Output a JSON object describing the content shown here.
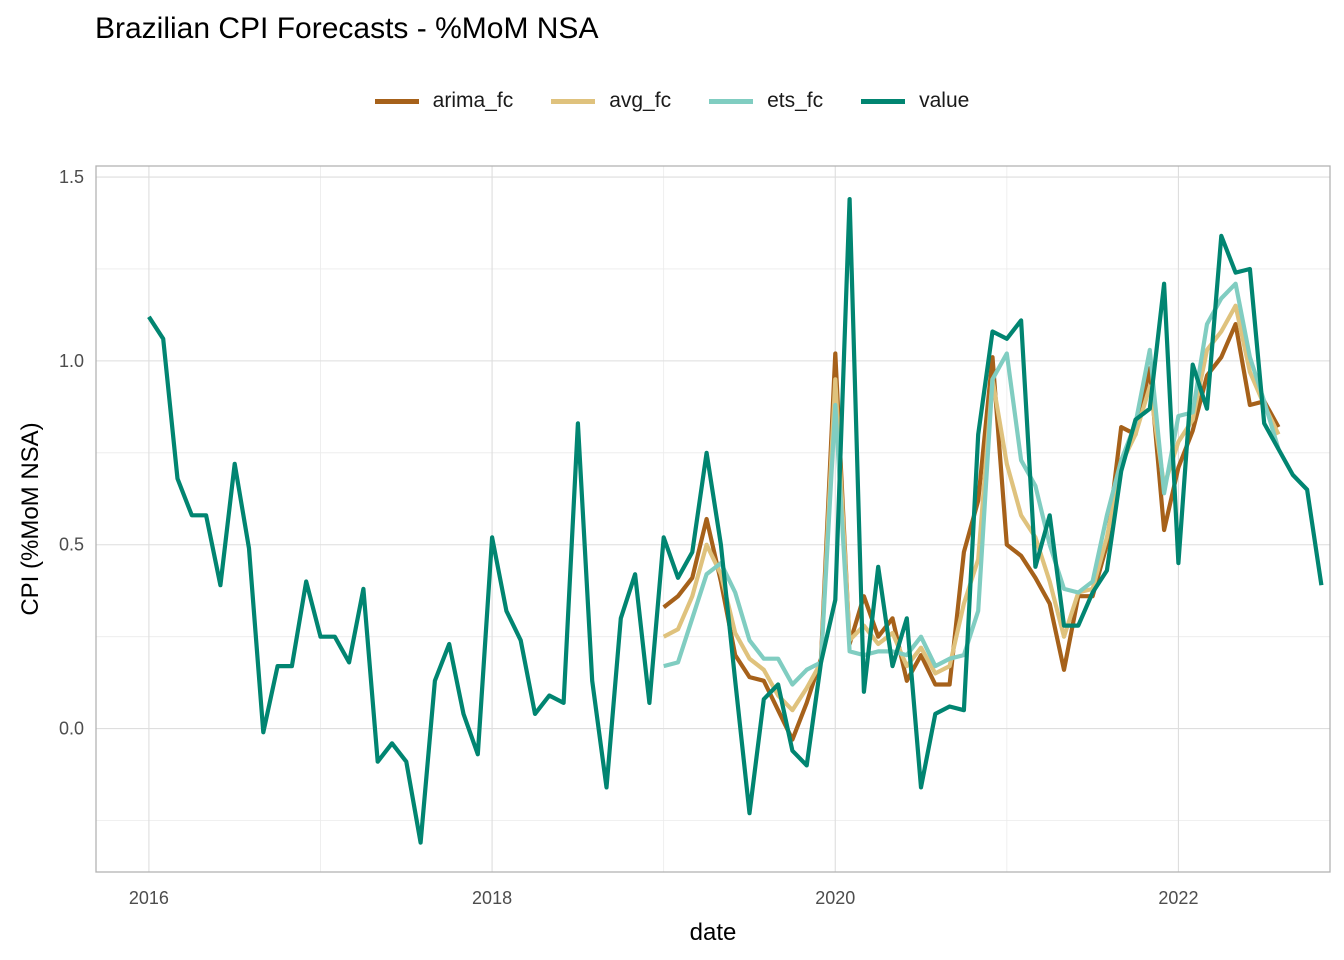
{
  "chart_data": {
    "type": "line",
    "title": "Brazilian CPI Forecasts - %MoM NSA",
    "xlabel": "date",
    "ylabel": "CPI (%MoM NSA)",
    "x_range": [
      "2015-09",
      "2022-12"
    ],
    "ylim": [
      -0.39,
      1.53
    ],
    "x_ticks": [
      {
        "value": "2016-01",
        "label": "2016"
      },
      {
        "value": "2018-01",
        "label": "2018"
      },
      {
        "value": "2020-01",
        "label": "2020"
      },
      {
        "value": "2022-01",
        "label": "2022"
      }
    ],
    "y_ticks": [
      {
        "value": 0.0,
        "label": "0.0"
      },
      {
        "value": 0.5,
        "label": "0.5"
      },
      {
        "value": 1.0,
        "label": "1.0"
      },
      {
        "value": 1.5,
        "label": "1.5"
      }
    ],
    "grid": true,
    "legend_position": "top",
    "series": [
      {
        "name": "arima_fc",
        "color": "#A6611A",
        "start": "2019-01",
        "values": [
          0.33,
          0.36,
          0.41,
          0.57,
          0.4,
          0.2,
          0.14,
          0.13,
          0.05,
          -0.03,
          0.07,
          0.19,
          1.02,
          0.23,
          0.36,
          0.25,
          0.3,
          0.13,
          0.2,
          0.12,
          0.12,
          0.48,
          0.62,
          1.01,
          0.5,
          0.47,
          0.41,
          0.34,
          0.16,
          0.36,
          0.36,
          0.5,
          0.82,
          0.8,
          0.98,
          0.54,
          0.71,
          0.81,
          0.96,
          1.01,
          1.1,
          0.88,
          0.89,
          0.82
        ]
      },
      {
        "name": "avg_fc",
        "color": "#DFC27D",
        "start": "2019-01",
        "values": [
          0.25,
          0.27,
          0.36,
          0.5,
          0.42,
          0.26,
          0.19,
          0.16,
          0.09,
          0.05,
          0.11,
          0.18,
          0.95,
          0.24,
          0.28,
          0.23,
          0.26,
          0.17,
          0.22,
          0.15,
          0.17,
          0.34,
          0.46,
          0.95,
          0.72,
          0.58,
          0.52,
          0.4,
          0.25,
          0.37,
          0.38,
          0.52,
          0.72,
          0.8,
          0.93,
          0.66,
          0.78,
          0.84,
          1.03,
          1.08,
          1.15,
          0.97,
          0.88,
          0.8
        ]
      },
      {
        "name": "ets_fc",
        "color": "#80CDC1",
        "start": "2019-01",
        "values": [
          0.17,
          0.18,
          0.3,
          0.42,
          0.45,
          0.37,
          0.24,
          0.19,
          0.19,
          0.12,
          0.16,
          0.18,
          0.88,
          0.21,
          0.2,
          0.21,
          0.21,
          0.2,
          0.25,
          0.17,
          0.19,
          0.2,
          0.32,
          0.95,
          1.02,
          0.73,
          0.66,
          0.5,
          0.38,
          0.37,
          0.4,
          0.58,
          0.73,
          0.83,
          1.03,
          0.64,
          0.85,
          0.86,
          1.1,
          1.17,
          1.21,
          1.01,
          0.89,
          0.76
        ]
      },
      {
        "name": "value",
        "color": "#018571",
        "start": "2016-01",
        "values": [
          1.12,
          1.06,
          0.68,
          0.58,
          0.58,
          0.39,
          0.72,
          0.49,
          -0.01,
          0.17,
          0.17,
          0.4,
          0.25,
          0.25,
          0.18,
          0.38,
          -0.09,
          -0.04,
          -0.09,
          -0.31,
          0.13,
          0.23,
          0.04,
          -0.07,
          0.52,
          0.32,
          0.24,
          0.04,
          0.09,
          0.07,
          0.83,
          0.13,
          -0.16,
          0.3,
          0.42,
          0.07,
          0.52,
          0.41,
          0.48,
          0.75,
          0.5,
          0.13,
          -0.23,
          0.08,
          0.12,
          -0.06,
          -0.1,
          0.18,
          0.35,
          1.44,
          0.1,
          0.44,
          0.17,
          0.3,
          -0.16,
          0.04,
          0.06,
          0.05,
          0.8,
          1.08,
          1.06,
          1.11,
          0.44,
          0.58,
          0.28,
          0.28,
          0.37,
          0.43,
          0.7,
          0.84,
          0.87,
          1.21,
          0.45,
          0.99,
          0.87,
          1.34,
          1.24,
          1.25,
          0.83,
          0.76,
          0.69,
          0.65,
          0.39
        ]
      }
    ]
  }
}
